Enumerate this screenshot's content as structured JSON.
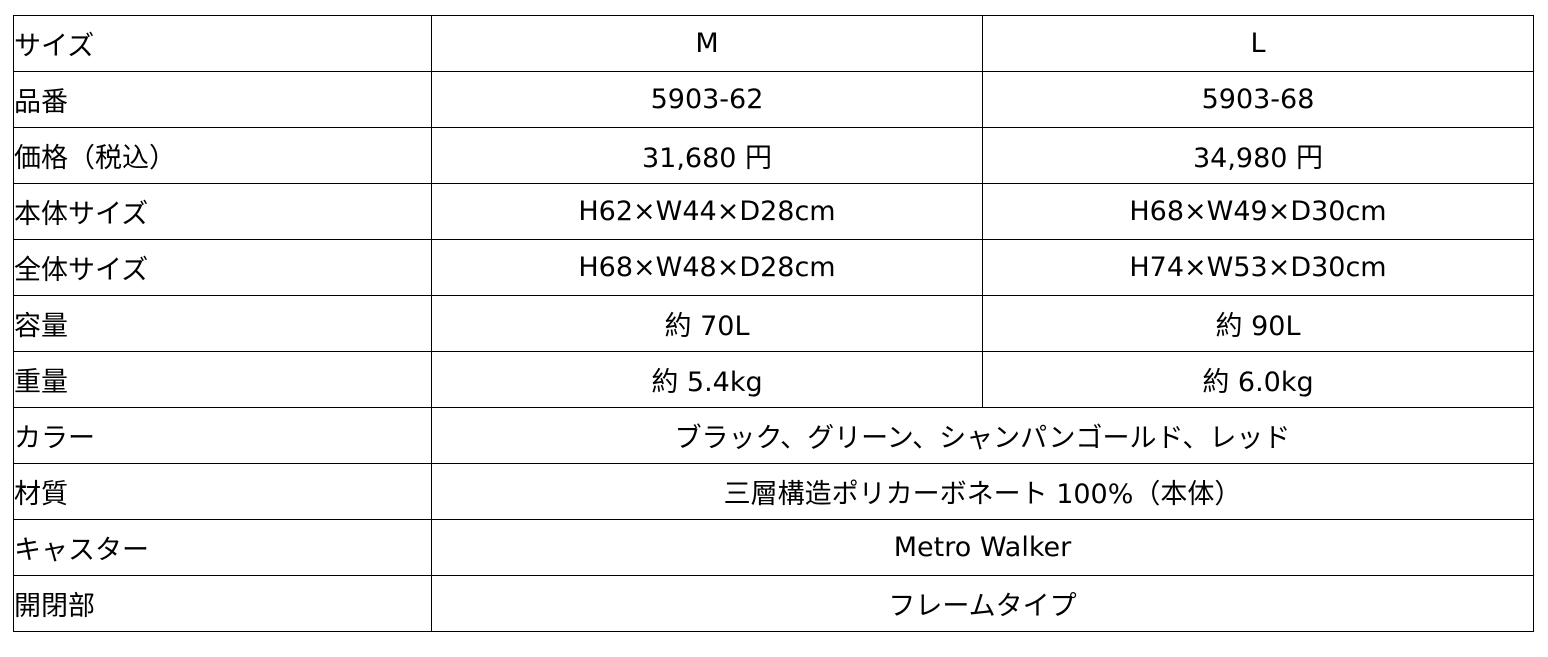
{
  "table": {
    "rows": [
      {
        "label": "サイズ",
        "m": "M",
        "l": "L"
      },
      {
        "label": "品番",
        "m": "5903-62",
        "l": "5903-68"
      },
      {
        "label": "価格（税込）",
        "m": "31,680 円",
        "l": "34,980 円"
      },
      {
        "label": "本体サイズ",
        "m": "H62×W44×D28cm",
        "l": "H68×W49×D30cm"
      },
      {
        "label": "全体サイズ",
        "m": "H68×W48×D28cm",
        "l": "H74×W53×D30cm"
      },
      {
        "label": "容量",
        "m": "約 70L",
        "l": "約 90L"
      },
      {
        "label": "重量",
        "m": "約 5.4kg",
        "l": "約 6.0kg"
      },
      {
        "label": "カラー",
        "both": "ブラック、グリーン、シャンパンゴールド、レッド"
      },
      {
        "label": "材質",
        "both": "三層構造ポリカーボネート 100%（本体）"
      },
      {
        "label": "キャスター",
        "both": "Metro Walker"
      },
      {
        "label": "開閉部",
        "both": "フレームタイプ"
      }
    ]
  }
}
